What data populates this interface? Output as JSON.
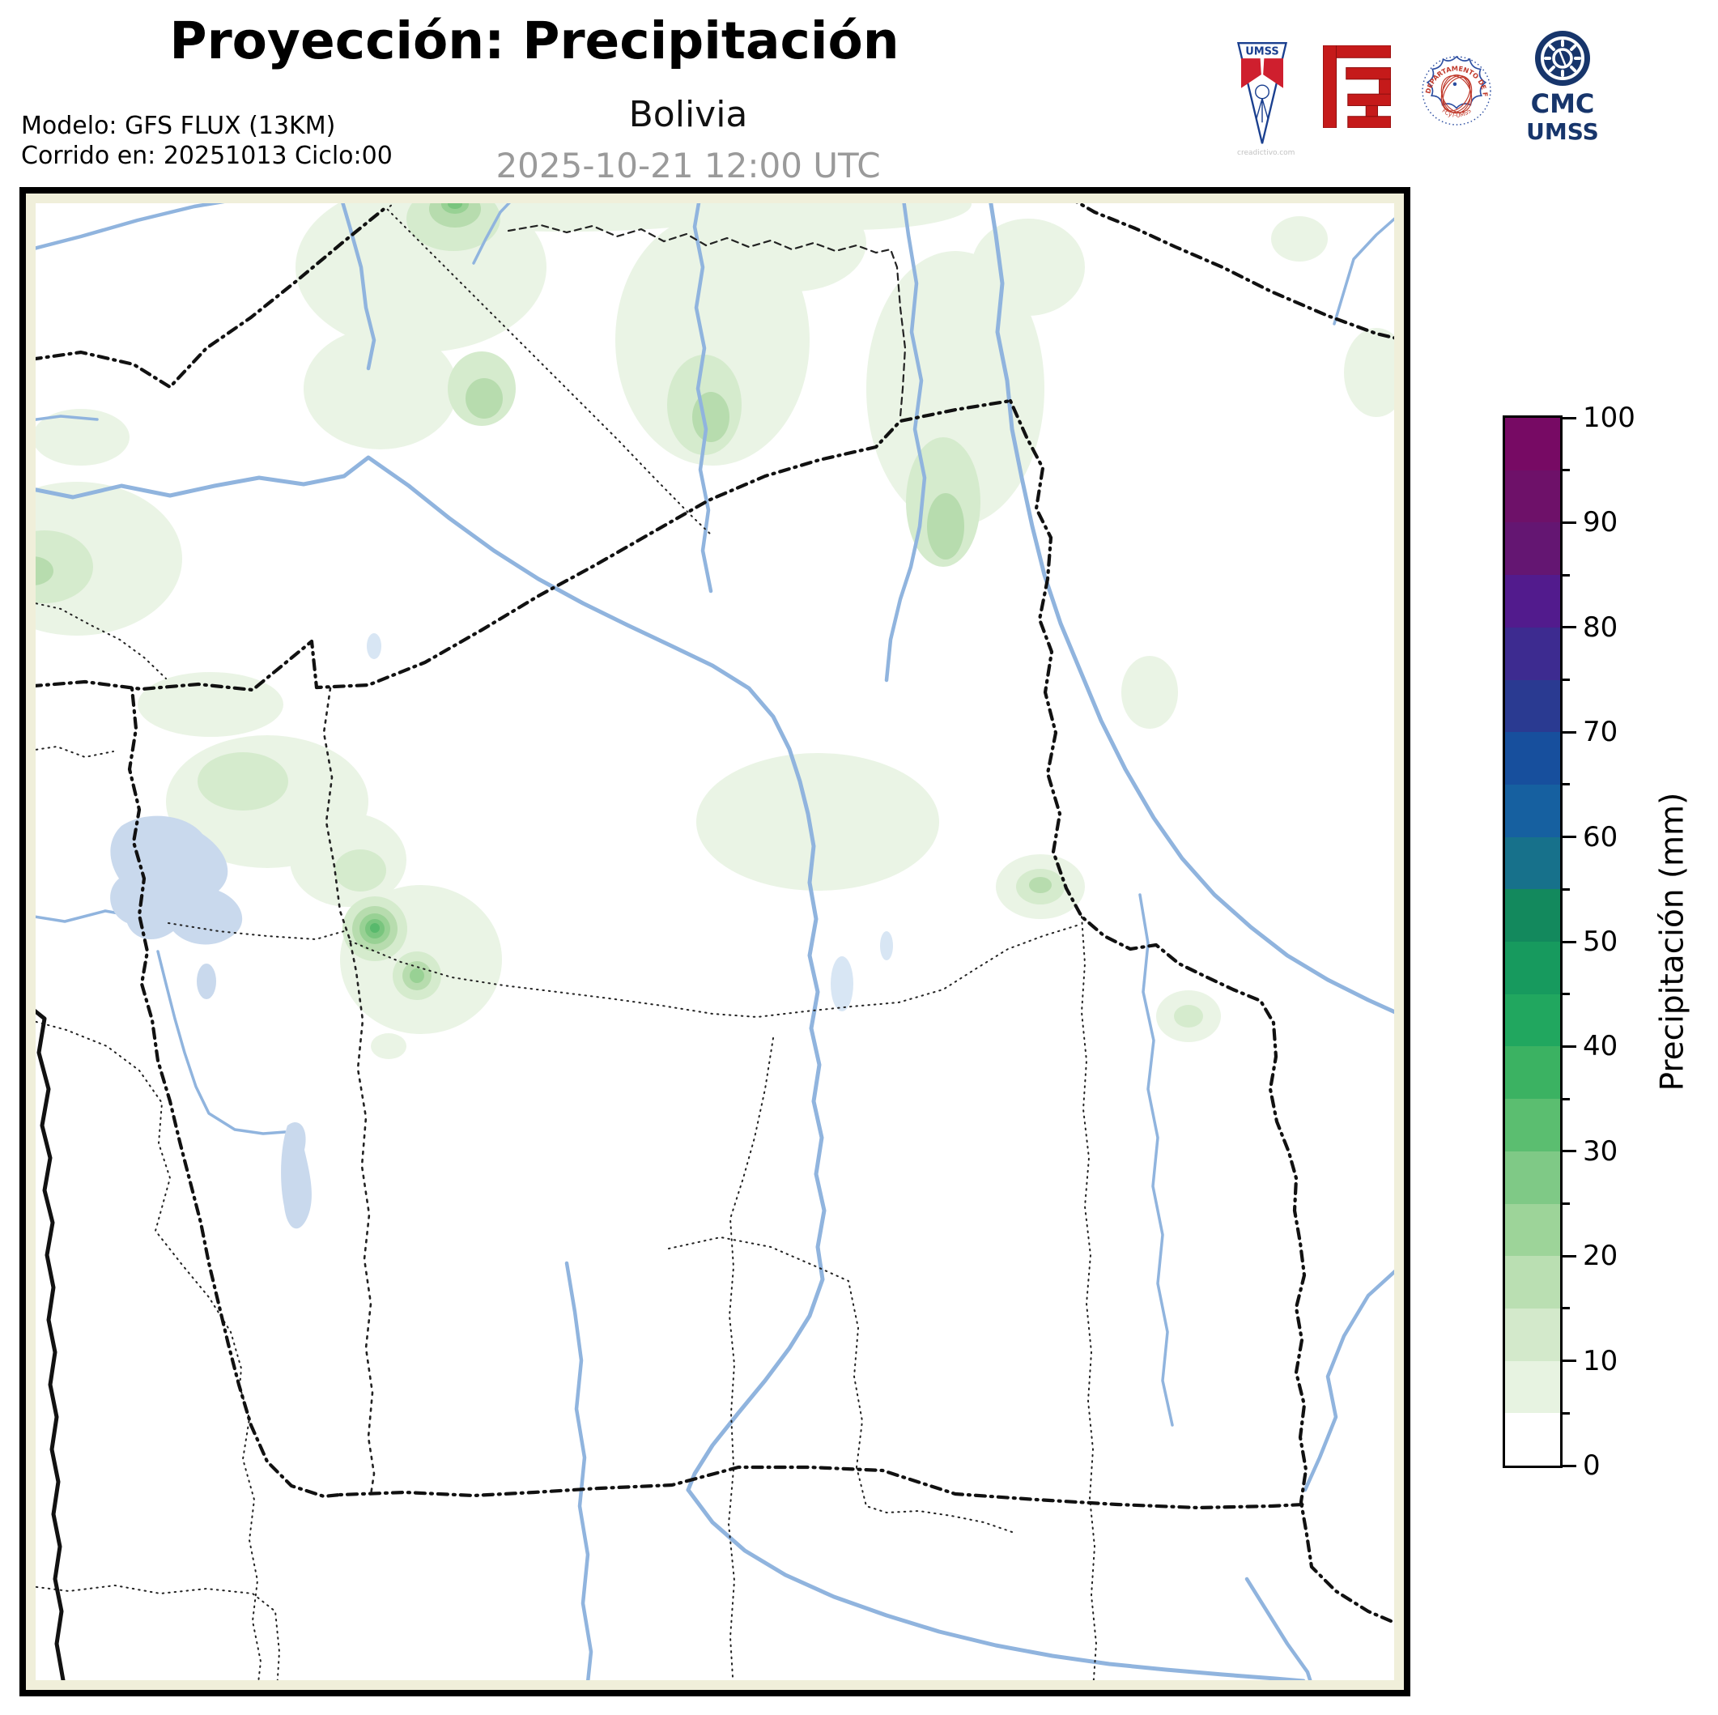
{
  "header": {
    "title": "Proyección: Precipitación",
    "subtitle": "Bolivia",
    "datetime": "2025-10-21 12:00 UTC",
    "model_line1": "Modelo: GFS FLUX (13KM)",
    "model_line2": "Corrido en: 20251013 Ciclo:00"
  },
  "logos": {
    "umss_pennant": {
      "text": "UMSS",
      "watermark": "creadictivo.com"
    },
    "fisica_seal": {
      "text_top": "DEPARTAMENTO DE FÍSICA",
      "text_bottom": "FCyT-UMSS"
    },
    "cmc": {
      "line1": "CMC",
      "line2": "UMSS"
    }
  },
  "colorbar": {
    "label": "Precipitación (mm)",
    "min": 0,
    "max": 100,
    "band_step": 5,
    "ticks": [
      0,
      10,
      20,
      30,
      40,
      50,
      60,
      70,
      80,
      90,
      100
    ],
    "minor_ticks": [
      5,
      15,
      25,
      35,
      45,
      55,
      65,
      75,
      85,
      95
    ],
    "band_colors": [
      "#ffffff",
      "#e7f3e1",
      "#d3e9cb",
      "#badfb2",
      "#9dd499",
      "#7fc986",
      "#5bbe70",
      "#3bb262",
      "#21a75f",
      "#179a5e",
      "#13895d",
      "#17718b",
      "#1660a0",
      "#174f9d",
      "#2a3a91",
      "#3d2b90",
      "#521b8d",
      "#641672",
      "#6e1169",
      "#770a64"
    ]
  },
  "map": {
    "region": "Bolivia",
    "colors": {
      "margin": "#f0efda",
      "land": "#ffffff",
      "river": "#90b4de",
      "lake": "#c9d9ed",
      "lake_faint": "#d8e6f4",
      "border_international": "#111111",
      "border_department": "#222222",
      "precip_faint": "#eaf4e5",
      "precip_light": "#d5ebcd",
      "precip_mid": "#b7dcae",
      "precip_deep": "#98d194",
      "precip_deeper": "#79c57e",
      "precip_core": "#58b96c"
    }
  }
}
